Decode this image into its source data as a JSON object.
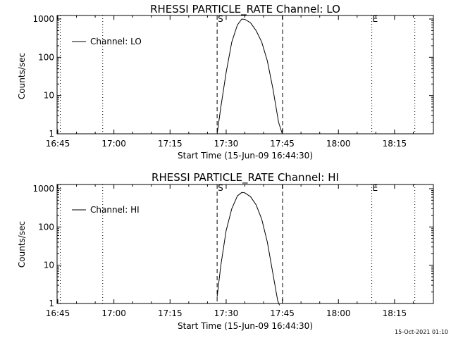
{
  "footer_timestamp": "15-Oct-2021 01:10",
  "colors": {
    "background": "#ffffff",
    "foreground": "#000000"
  },
  "chart_data": [
    {
      "type": "line",
      "title": "RHESSI PARTICLE_RATE Channel: LO",
      "xlabel": "Start Time (15-Jun-09 16:44:30)",
      "ylabel": "Counts/sec",
      "y_scale": "log",
      "ylim": [
        0.9,
        1200
      ],
      "xlim_minutes_after_1645": [
        0,
        96.6
      ],
      "xtick_labels": [
        "16:45",
        "17:00",
        "17:15",
        "17:30",
        "17:45",
        "18:00",
        "18:15"
      ],
      "ytick_labels": [
        "1",
        "10",
        "100",
        "1000"
      ],
      "legend": {
        "label": "Channel: LO",
        "placement": "top-left"
      },
      "markers": {
        "start_label": "S",
        "end_label": "E"
      },
      "dashed_times": [
        "17:27:35",
        "17:45:05"
      ],
      "dotted_times": [
        "16:45:40",
        "16:57:00",
        "18:08:55",
        "18:20:25"
      ],
      "series": [
        {
          "name": "Channel: LO",
          "x": [
            "17:27:35",
            "17:28:35",
            "17:30:00",
            "17:31:30",
            "17:33:00",
            "17:34:10",
            "17:35:00",
            "17:36:30",
            "17:38:00",
            "17:39:30",
            "17:41:00",
            "17:42:30",
            "17:44:00",
            "17:45:00"
          ],
          "y": [
            1,
            5,
            40,
            250,
            700,
            1000,
            980,
            800,
            500,
            250,
            80,
            15,
            2,
            1
          ]
        }
      ]
    },
    {
      "type": "line",
      "title": "RHESSI PARTICLE_RATE Channel: HI",
      "xlabel": "Start Time (15-Jun-09 16:44:30)",
      "ylabel": "Counts/sec",
      "y_scale": "log",
      "ylim": [
        0.9,
        1200
      ],
      "xlim_minutes_after_1645": [
        0,
        96.6
      ],
      "xtick_labels": [
        "16:45",
        "17:00",
        "17:15",
        "17:30",
        "17:45",
        "18:00",
        "18:15"
      ],
      "ytick_labels": [
        "1",
        "10",
        "100",
        "1000"
      ],
      "legend": {
        "label": "Channel: HI",
        "placement": "top-left"
      },
      "markers": {
        "start_label": "S",
        "end_label": "E"
      },
      "dashed_times": [
        "17:27:35",
        "17:45:05"
      ],
      "dotted_times": [
        "16:45:40",
        "16:57:00",
        "18:08:55",
        "18:20:25"
      ],
      "series": [
        {
          "name": "Channel: HI",
          "x": [
            "17:27:35",
            "17:28:35",
            "17:30:00",
            "17:31:30",
            "17:33:00",
            "17:34:10",
            "17:35:00",
            "17:36:30",
            "17:38:00",
            "17:39:30",
            "17:41:00",
            "17:42:30",
            "17:43:45",
            "17:44:15"
          ],
          "y": [
            1.5,
            10,
            80,
            300,
            650,
            800,
            780,
            620,
            380,
            160,
            40,
            6,
            1.2,
            0.9
          ]
        }
      ]
    }
  ]
}
